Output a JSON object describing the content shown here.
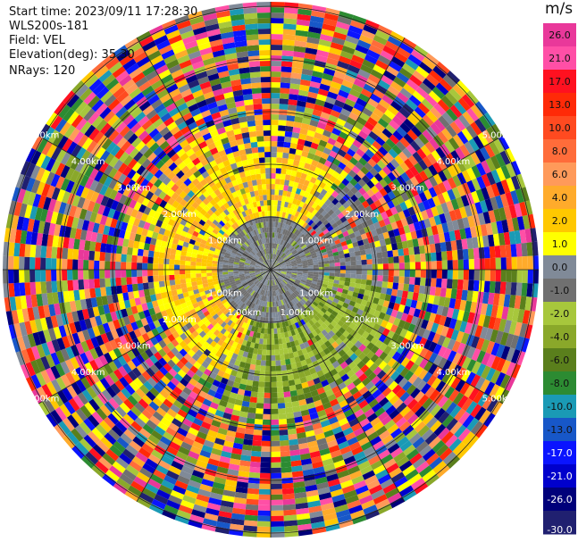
{
  "info": {
    "start_time": "Start time: 2023/09/11 17:28:30",
    "instrument": "WLS200s-181",
    "field": "Field: VEL",
    "elevation": "Elevation(deg): 35.30",
    "nrays": "NRays: 120"
  },
  "chart_data": {
    "type": "polar-ppi",
    "field": "VEL",
    "units": "m/s",
    "nrays": 120,
    "elevation_deg": 35.3,
    "range_ring_labels": [
      "1.00km",
      "2.00km",
      "3.00km",
      "4.00km",
      "5.00km"
    ],
    "colorbar": {
      "ticks": [
        "26.0",
        "21.0",
        "17.0",
        "13.0",
        "10.0",
        "8.0",
        "6.0",
        "4.0",
        "2.0",
        "1.0",
        "0.0",
        "-1.0",
        "-2.0",
        "-4.0",
        "-6.0",
        "-8.0",
        "-10.0",
        "-13.0",
        "-17.0",
        "-21.0",
        "-26.0",
        "-30.0"
      ],
      "bins": [
        {
          "range": [
            26,
            30
          ],
          "color": "#e9389a"
        },
        {
          "range": [
            21,
            26
          ],
          "color": "#ff4fa6"
        },
        {
          "range": [
            17,
            21
          ],
          "color": "#ff1120"
        },
        {
          "range": [
            13,
            17
          ],
          "color": "#ff2a08"
        },
        {
          "range": [
            10,
            13
          ],
          "color": "#ff4a20"
        },
        {
          "range": [
            8,
            10
          ],
          "color": "#ff6c3a"
        },
        {
          "range": [
            6,
            8
          ],
          "color": "#ff9a5a"
        },
        {
          "range": [
            4,
            6
          ],
          "color": "#ffab2b"
        },
        {
          "range": [
            2,
            4
          ],
          "color": "#ffc800"
        },
        {
          "range": [
            1,
            2
          ],
          "color": "#ffff00"
        },
        {
          "range": [
            0,
            1
          ],
          "color": "#808a98"
        },
        {
          "range": [
            -1,
            0
          ],
          "color": "#707070"
        },
        {
          "range": [
            -2,
            -1
          ],
          "color": "#a7c73c"
        },
        {
          "range": [
            -4,
            -2
          ],
          "color": "#8aa82a"
        },
        {
          "range": [
            -6,
            -4
          ],
          "color": "#5a7f1c"
        },
        {
          "range": [
            -8,
            -6
          ],
          "color": "#2c8b32"
        },
        {
          "range": [
            -10,
            -8
          ],
          "color": "#1a9ab5"
        },
        {
          "range": [
            -13,
            -10
          ],
          "color": "#1757c8"
        },
        {
          "range": [
            -17,
            -13
          ],
          "color": "#0a14ff"
        },
        {
          "range": [
            -21,
            -17
          ],
          "color": "#0000cc"
        },
        {
          "range": [
            -26,
            -21
          ],
          "color": "#00007a"
        },
        {
          "range": [
            -30,
            -26
          ],
          "color": "#202070"
        }
      ]
    },
    "pattern": {
      "inner_km": "-1.0 to 1.0 (gray)",
      "north_west_sector": "1.0 to 4.0 (yellow)",
      "south_east_sector": "-2.0 to -4.0 (olive green)",
      "outer_km": "noisy, full color range"
    }
  }
}
